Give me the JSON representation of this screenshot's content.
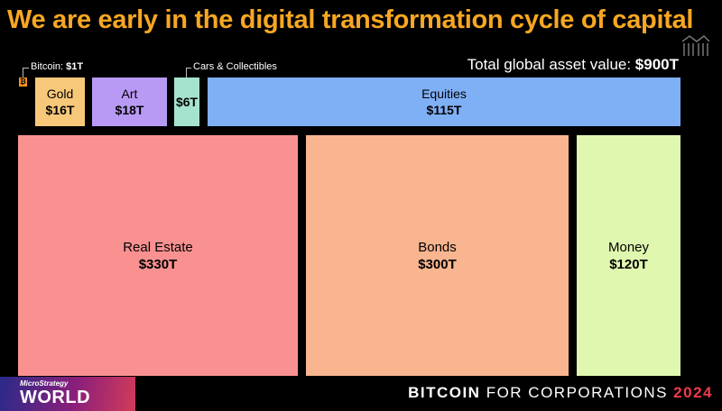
{
  "slide": {
    "title": "We are early in the digital transformation cycle of capital",
    "total_label": "Total global asset value: ",
    "total_value": "$900T"
  },
  "callouts": {
    "bitcoin_label": "Bitcoin: ",
    "bitcoin_value": "$1T",
    "cars_label": "Cars & Collectibles"
  },
  "tiles": {
    "gold": {
      "name": "Gold",
      "value": "$16T",
      "color": "#f8c87a"
    },
    "art": {
      "name": "Art",
      "value": "$18T",
      "color": "#b89af5"
    },
    "cars": {
      "name": "",
      "value": "$6T",
      "color": "#a6e3cf"
    },
    "equities": {
      "name": "Equities",
      "value": "$115T",
      "color": "#7fb0f6"
    },
    "real_estate": {
      "name": "Real Estate",
      "value": "$330T",
      "color": "#f99191"
    },
    "bonds": {
      "name": "Bonds",
      "value": "$300T",
      "color": "#f8b590"
    },
    "money": {
      "name": "Money",
      "value": "$120T",
      "color": "#e0f7b0"
    }
  },
  "footer": {
    "brand_small": "MicroStrategy",
    "brand_big": "WORLD",
    "event_bold": "BITCOIN",
    "event_rest": " FOR CORPORATIONS ",
    "event_year": "2024"
  }
}
